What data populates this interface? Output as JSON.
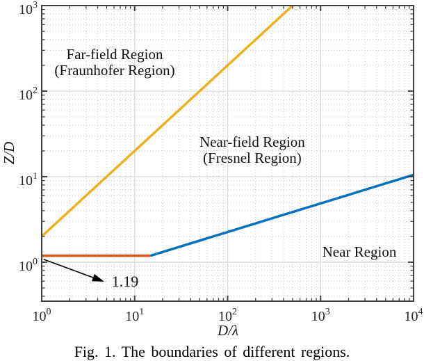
{
  "caption": "Fig. 1. The boundaries of different regions.",
  "colors": {
    "axis": "#3f3f3f",
    "major_grid": "#dbdbdb",
    "minor_grid": "#cccccc",
    "tick_text": "#262626",
    "annotation_text": "#111111",
    "arrow": "#000000"
  },
  "chart_data": {
    "type": "line",
    "title": "",
    "xlabel": "D/λ",
    "ylabel": "Z/D",
    "xscale": "log",
    "yscale": "log",
    "xlim": [
      1,
      10000
    ],
    "ylim": [
      0.35,
      1000
    ],
    "x_tick_exponents": [
      0,
      1,
      2,
      3,
      4
    ],
    "y_tick_exponents": [
      0,
      1,
      2,
      3
    ],
    "grid": true,
    "minor_grid": true,
    "legend": "none",
    "series": [
      {
        "name": "far-field-boundary",
        "label": "Far-field (Fraunhofer) boundary, Z/D = 2·D/λ",
        "color": "#EDB120",
        "x": [
          1,
          500
        ],
        "y": [
          2,
          1000
        ]
      },
      {
        "name": "near-region-boundary",
        "label": "Near region boundary, Z/D = 1.19",
        "color": "#D95319",
        "x": [
          1,
          14.8
        ],
        "y": [
          1.19,
          1.19
        ]
      },
      {
        "name": "near-field-boundary",
        "label": "Near-field (Fresnel) boundary",
        "color": "#0072BD",
        "x": [
          14.8,
          10000
        ],
        "y": [
          1.19,
          10.5
        ]
      }
    ],
    "annotations": [
      {
        "name": "far-field-region-label",
        "lines": [
          "Far-field Region",
          "(Fraunhofer Region)"
        ],
        "x": 6.1,
        "y": 217
      },
      {
        "name": "near-field-region-label",
        "lines": [
          "Near-field Region",
          "(Fresnel Region)"
        ],
        "x": 184,
        "y": 20.5
      },
      {
        "name": "near-region-label",
        "lines": [
          "Near Region"
        ],
        "x": 2610,
        "y": 1.32
      },
      {
        "name": "value-callout-label",
        "lines": [
          "1.19"
        ],
        "x": 7.9,
        "y": 0.592
      }
    ],
    "arrow": {
      "from_x": 1.05,
      "from_y": 1.08,
      "to_x": 4.7,
      "to_y": 0.592
    }
  }
}
